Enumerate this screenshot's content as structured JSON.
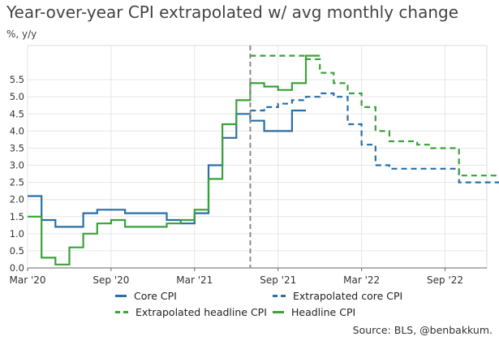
{
  "title": "Year-over-year CPI extrapolated w/ avg monthly change",
  "subtitle": "%, y/y",
  "source": "Source: BLS, @benbakkum.",
  "colors": {
    "core": "#2a6fa6",
    "headline": "#3aa13a",
    "vline": "#8a8a8a",
    "axis": "#444444"
  },
  "chart_data": {
    "type": "line",
    "x_type": "month-step",
    "xlim": [
      "2020-03",
      "2022-12"
    ],
    "ylim": [
      0,
      6.5
    ],
    "y_ticks": [
      0,
      0.5,
      1,
      1.5,
      2,
      2.5,
      3,
      3.5,
      4,
      4.5,
      5,
      5.5
    ],
    "y_tick_labels": [
      "0.0",
      "0.5",
      "1.0",
      "1.5",
      "2.0",
      "2.5",
      "3.0",
      "3.5",
      "4.0",
      "4.5",
      "5.0",
      "5.5"
    ],
    "x_ticks": [
      "2020-03",
      "2020-09",
      "2021-03",
      "2021-09",
      "2022-03",
      "2022-09"
    ],
    "x_tick_labels": [
      "Mar '20",
      "Sep '20",
      "Mar '21",
      "Sep '21",
      "Mar '22",
      "Sep '22"
    ],
    "vertical_marker": "2021-07",
    "grid": true,
    "legend_position": "bottom",
    "series": [
      {
        "name": "Core CPI",
        "style": "solid",
        "color": "#2a6fa6",
        "start": "2020-03",
        "values": [
          2.1,
          1.4,
          1.2,
          1.2,
          1.6,
          1.7,
          1.7,
          1.6,
          1.6,
          1.6,
          1.4,
          1.3,
          1.6,
          3.0,
          3.8,
          4.5,
          4.3,
          4.0,
          4.0,
          4.6
        ]
      },
      {
        "name": "Headline CPI",
        "style": "solid",
        "color": "#3aa13a",
        "start": "2020-03",
        "values": [
          1.5,
          0.3,
          0.1,
          0.6,
          1.0,
          1.3,
          1.4,
          1.2,
          1.2,
          1.2,
          1.3,
          1.4,
          1.7,
          2.6,
          4.2,
          4.9,
          5.4,
          5.3,
          5.2,
          5.4,
          6.2
        ]
      },
      {
        "name": "Extrapolated core CPI",
        "style": "dashed",
        "color": "#2a6fa6",
        "start": "2021-07",
        "values": [
          4.6,
          4.7,
          4.8,
          4.9,
          5.0,
          5.1,
          5.0,
          4.2,
          3.6,
          3.0,
          2.9,
          2.9,
          2.9,
          2.9,
          2.9,
          2.5,
          2.5,
          2.5
        ]
      },
      {
        "name": "Extrapolated headline CPI",
        "style": "dashed",
        "color": "#3aa13a",
        "start": "2021-07",
        "values": [
          6.2,
          6.2,
          6.2,
          6.2,
          6.1,
          5.7,
          5.4,
          5.1,
          4.7,
          4.0,
          3.7,
          3.7,
          3.6,
          3.5,
          3.5,
          2.7,
          2.7,
          2.7
        ]
      }
    ],
    "legend": [
      {
        "name": "Core CPI",
        "style": "solid",
        "color": "#2a6fa6"
      },
      {
        "name": "Extrapolated core CPI",
        "style": "dashed",
        "color": "#2a6fa6"
      },
      {
        "name": "Extrapolated headline CPI",
        "style": "dashed",
        "color": "#3aa13a"
      },
      {
        "name": "Headline CPI",
        "style": "solid",
        "color": "#3aa13a"
      }
    ]
  }
}
